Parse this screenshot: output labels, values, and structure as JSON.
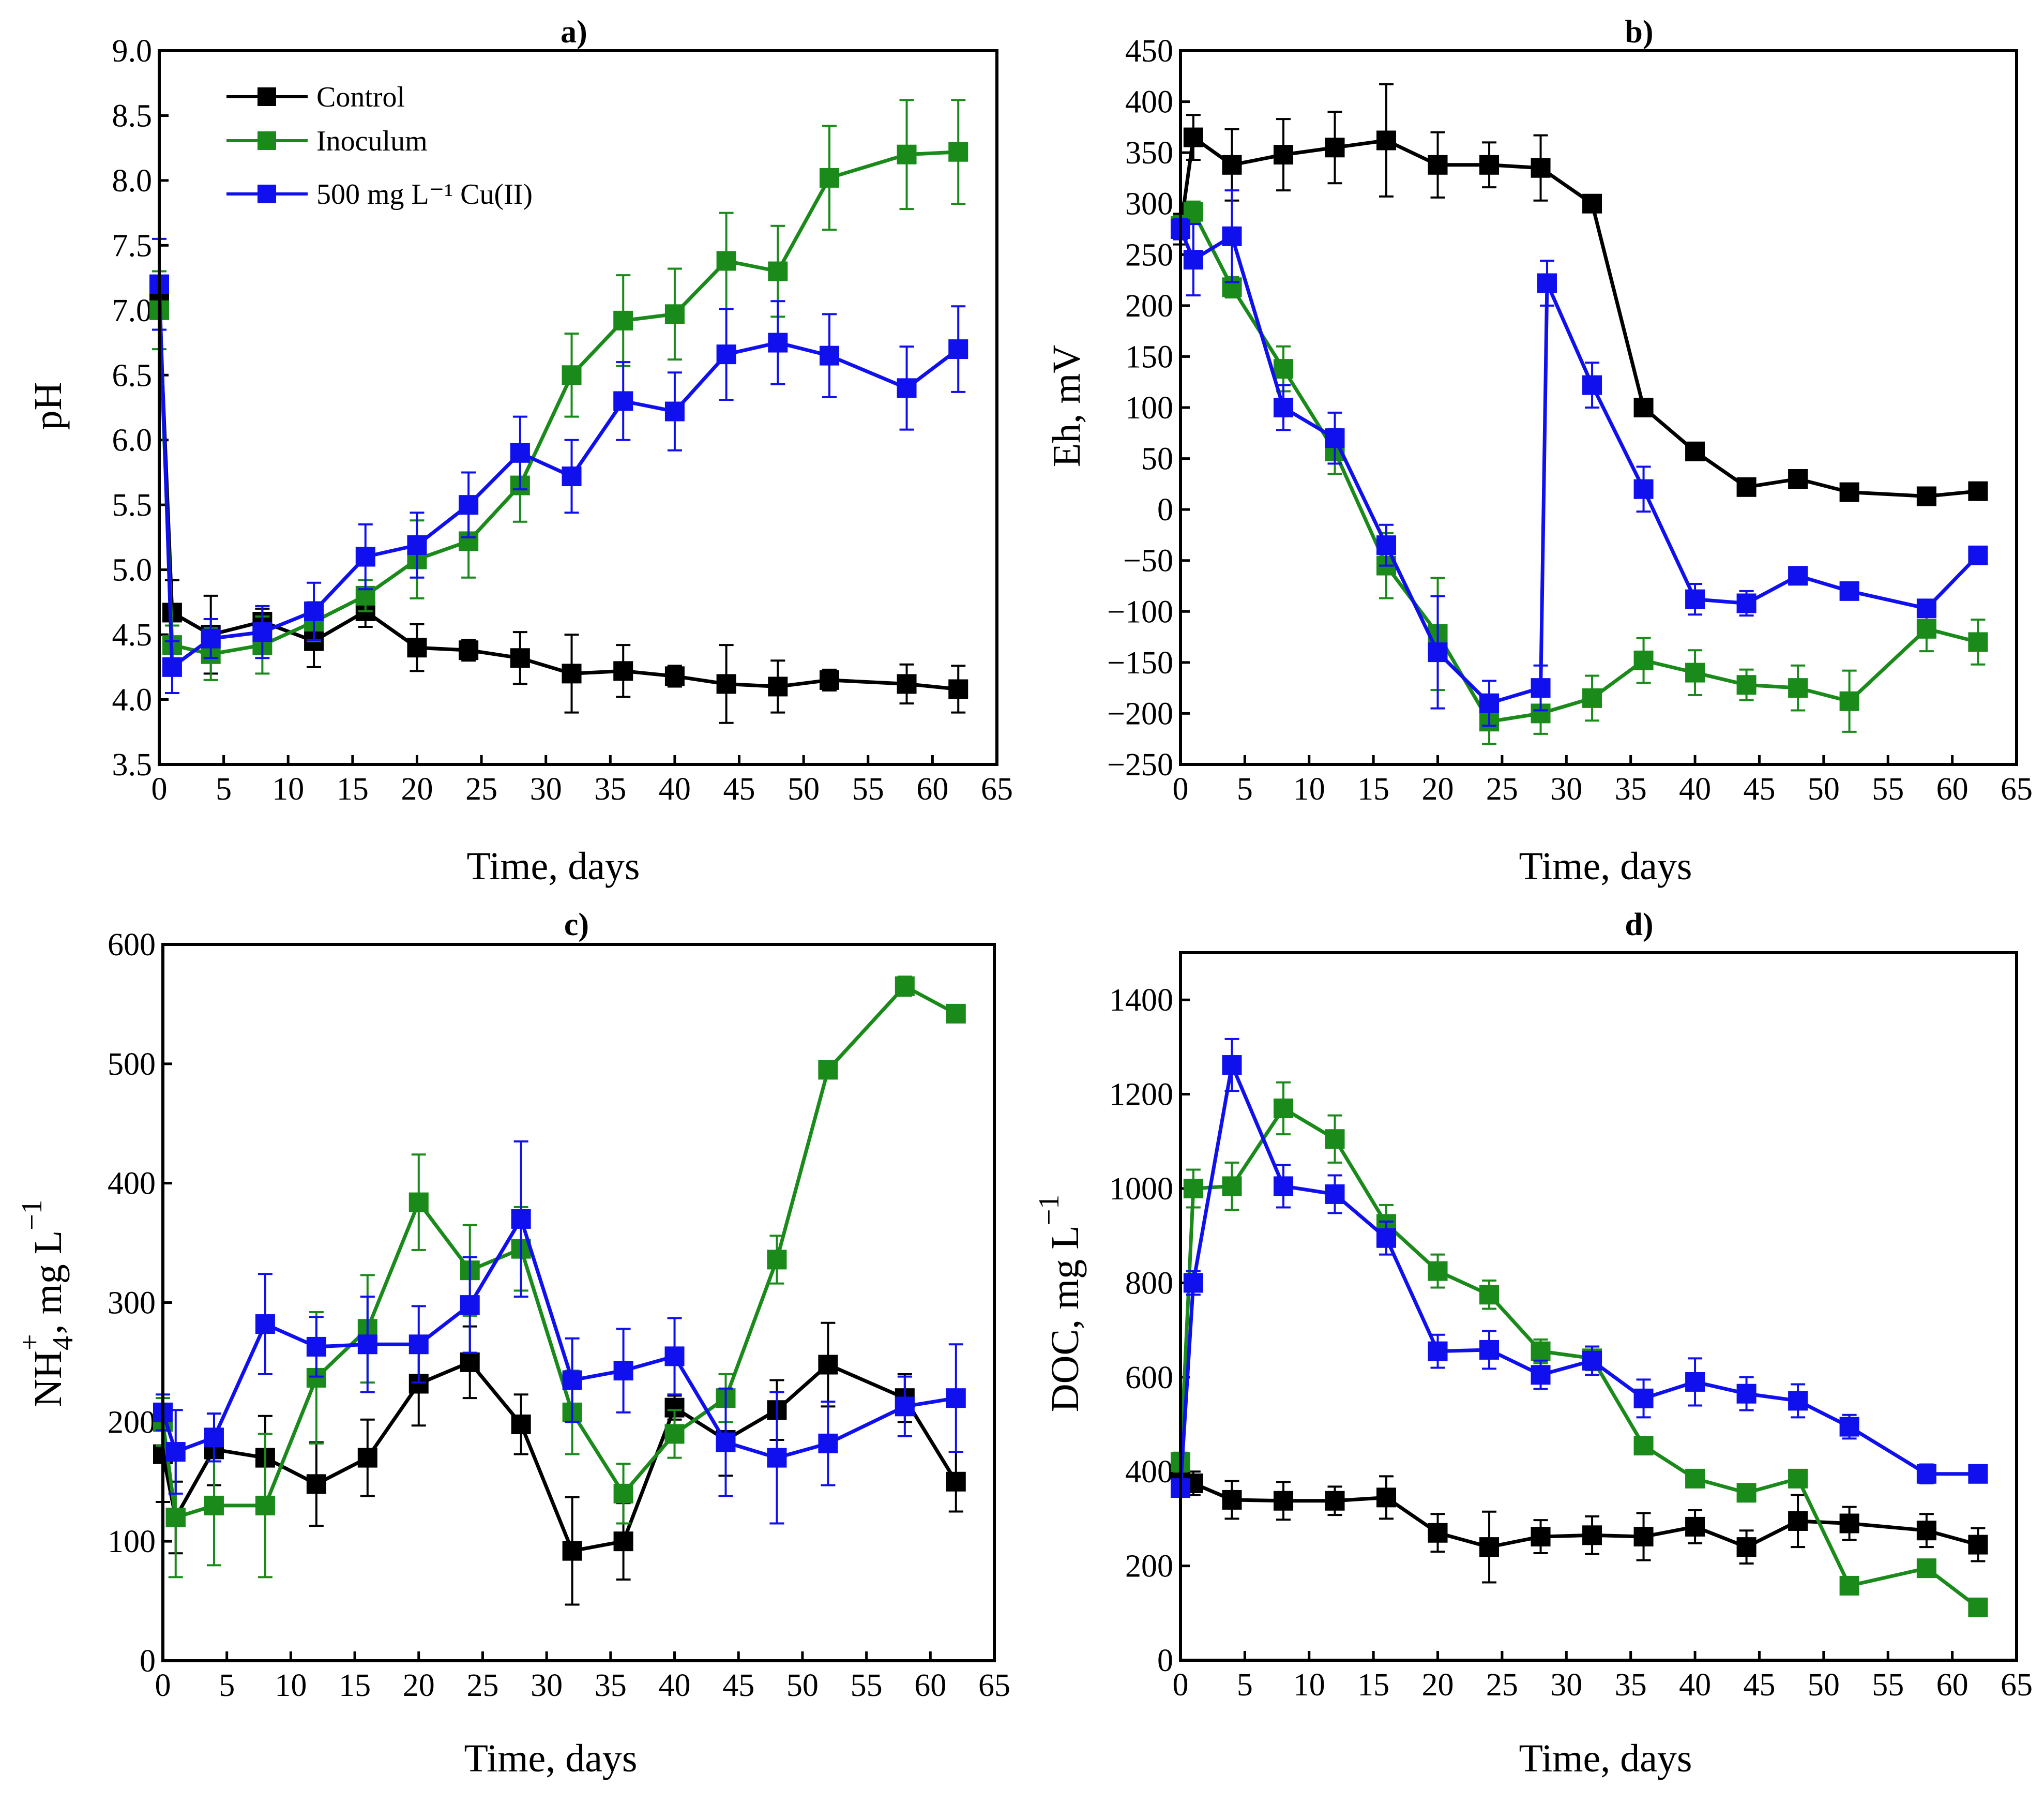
{
  "figure": {
    "legend": [
      {
        "label": "Control",
        "color": "#000000"
      },
      {
        "label": "Inoculum",
        "color": "#1a8a1a"
      },
      {
        "label": "500 mg L⁻¹ Cu(II)",
        "color": "#1010ee"
      }
    ]
  },
  "chart_data": [
    {
      "id": "a",
      "type": "line",
      "title": "a)",
      "xlabel": "Time, days",
      "ylabel": "pH",
      "xlim": [
        0,
        65
      ],
      "ylim": [
        3.5,
        9.0
      ],
      "xticks": [
        0,
        5,
        10,
        15,
        20,
        25,
        30,
        35,
        40,
        45,
        50,
        55,
        60,
        65
      ],
      "yticks": [
        3.5,
        4.0,
        4.5,
        5.0,
        5.5,
        6.0,
        6.5,
        7.0,
        7.5,
        8.0,
        8.5,
        9.0
      ],
      "ytick_labels": [
        "3.5",
        "4.0",
        "4.5",
        "5.0",
        "5.5",
        "6.0",
        "6.5",
        "7.0",
        "7.5",
        "8.0",
        "8.5",
        "9.0"
      ],
      "legend_position": "top-left",
      "series": [
        {
          "name": "Control",
          "color": "#000000",
          "x": [
            0,
            1,
            4,
            8,
            12,
            16,
            20,
            24,
            28,
            32,
            36,
            40,
            44,
            48,
            52,
            58,
            62
          ],
          "y": [
            7.05,
            4.67,
            4.5,
            4.6,
            4.45,
            4.68,
            4.4,
            4.38,
            4.32,
            4.2,
            4.22,
            4.18,
            4.12,
            4.1,
            4.15,
            4.12,
            4.08
          ],
          "err": [
            0.2,
            0.25,
            0.3,
            0.1,
            0.2,
            0.12,
            0.18,
            0.08,
            0.2,
            0.3,
            0.2,
            0.08,
            0.3,
            0.2,
            0.08,
            0.15,
            0.18
          ]
        },
        {
          "name": "Inoculum",
          "color": "#1a8a1a",
          "x": [
            0,
            1,
            4,
            8,
            12,
            16,
            20,
            24,
            28,
            32,
            36,
            40,
            44,
            48,
            52,
            58,
            62
          ],
          "y": [
            7.0,
            4.42,
            4.35,
            4.42,
            4.6,
            4.8,
            5.08,
            5.22,
            5.65,
            6.5,
            6.92,
            6.97,
            7.38,
            7.3,
            8.02,
            8.2,
            8.22
          ],
          "err": [
            0.3,
            0.15,
            0.2,
            0.22,
            0.15,
            0.12,
            0.3,
            0.28,
            0.28,
            0.32,
            0.35,
            0.35,
            0.37,
            0.35,
            0.4,
            0.42,
            0.4
          ]
        },
        {
          "name": "500 mg L⁻¹ Cu(II)",
          "color": "#1010ee",
          "x": [
            0,
            1,
            4,
            8,
            12,
            16,
            20,
            24,
            28,
            32,
            36,
            40,
            44,
            48,
            52,
            58,
            62
          ],
          "y": [
            7.2,
            4.25,
            4.47,
            4.52,
            4.68,
            5.1,
            5.19,
            5.5,
            5.9,
            5.72,
            6.3,
            6.22,
            6.66,
            6.75,
            6.65,
            6.4,
            6.7
          ],
          "err": [
            0.35,
            0.2,
            0.15,
            0.2,
            0.22,
            0.25,
            0.25,
            0.25,
            0.28,
            0.28,
            0.3,
            0.3,
            0.35,
            0.32,
            0.32,
            0.32,
            0.33
          ]
        }
      ]
    },
    {
      "id": "b",
      "type": "line",
      "title": "b)",
      "xlabel": "Time, days",
      "ylabel": "Eh, mV",
      "xlim": [
        0,
        65
      ],
      "ylim": [
        -250,
        450
      ],
      "xticks": [
        0,
        5,
        10,
        15,
        20,
        25,
        30,
        35,
        40,
        45,
        50,
        55,
        60,
        65
      ],
      "yticks": [
        -250,
        -200,
        -150,
        -100,
        -50,
        0,
        50,
        100,
        150,
        200,
        250,
        300,
        350,
        400,
        450
      ],
      "ytick_labels": [
        "−250",
        "−200",
        "−150",
        "−100",
        "−50",
        "0",
        "50",
        "100",
        "150",
        "200",
        "250",
        "300",
        "350",
        "400",
        "450"
      ],
      "series": [
        {
          "name": "Control",
          "color": "#000000",
          "x": [
            0,
            1,
            4,
            8,
            12,
            16,
            20,
            24,
            28,
            32,
            36,
            40,
            44,
            48,
            52,
            58,
            62
          ],
          "y": [
            275,
            365,
            338,
            348,
            355,
            362,
            338,
            338,
            335,
            300,
            100,
            57,
            22,
            30,
            17,
            13,
            18
          ],
          "err": [
            15,
            22,
            35,
            35,
            35,
            55,
            32,
            22,
            32,
            5,
            5,
            5,
            5,
            5,
            5,
            5,
            5
          ]
        },
        {
          "name": "Inoculum",
          "color": "#1a8a1a",
          "x": [
            0,
            1,
            4,
            8,
            12,
            16,
            20,
            24,
            28,
            32,
            36,
            40,
            44,
            48,
            52,
            58,
            62
          ],
          "y": [
            278,
            292,
            218,
            138,
            57,
            -55,
            -122,
            -208,
            -200,
            -185,
            -148,
            -160,
            -172,
            -175,
            -188,
            -117,
            -130
          ],
          "err": [
            10,
            10,
            10,
            22,
            22,
            32,
            55,
            22,
            20,
            22,
            22,
            22,
            15,
            22,
            30,
            22,
            22
          ]
        },
        {
          "name": "500 mg L⁻¹ Cu(II)",
          "color": "#1010ee",
          "x": [
            0,
            1,
            4,
            8,
            12,
            16,
            20,
            24,
            28,
            28.5,
            32,
            36,
            40,
            44,
            48,
            52,
            58,
            62
          ],
          "y": [
            275,
            245,
            268,
            100,
            70,
            -35,
            -140,
            -190,
            -175,
            222,
            122,
            20,
            -88,
            -92,
            -65,
            -80,
            -97,
            -45
          ],
          "err": [
            10,
            35,
            45,
            22,
            25,
            20,
            55,
            22,
            22,
            22,
            22,
            22,
            15,
            12,
            5,
            5,
            5,
            5
          ]
        }
      ]
    },
    {
      "id": "c",
      "type": "line",
      "title": "c)",
      "xlabel": "Time, days",
      "ylabel": "NH4+, mg L−1",
      "ylabel_parts": {
        "base": "NH",
        "sub": "4",
        "sup": "+",
        "unit": ", mg L",
        "unit_sup": "−1"
      },
      "xlim": [
        0,
        65
      ],
      "ylim": [
        0,
        600
      ],
      "xticks": [
        0,
        5,
        10,
        15,
        20,
        25,
        30,
        35,
        40,
        45,
        50,
        55,
        60,
        65
      ],
      "yticks": [
        0,
        100,
        200,
        300,
        400,
        500,
        600
      ],
      "ytick_labels": [
        "0",
        "100",
        "200",
        "300",
        "400",
        "500",
        "600"
      ],
      "series": [
        {
          "name": "Control",
          "color": "#000000",
          "x": [
            0,
            1,
            4,
            8,
            12,
            16,
            20,
            24,
            28,
            32,
            36,
            40,
            44,
            48,
            52,
            58,
            62
          ],
          "y": [
            173,
            120,
            177,
            170,
            148,
            170,
            232,
            250,
            198,
            92,
            100,
            212,
            185,
            210,
            248,
            220,
            150
          ],
          "err": [
            40,
            30,
            30,
            35,
            35,
            32,
            35,
            30,
            25,
            45,
            32,
            10,
            30,
            25,
            35,
            20,
            25
          ]
        },
        {
          "name": "Inoculum",
          "color": "#1a8a1a",
          "x": [
            0,
            1,
            4,
            8,
            12,
            16,
            20,
            24,
            28,
            32,
            36,
            40,
            44,
            48,
            52,
            58,
            62
          ],
          "y": [
            200,
            120,
            130,
            130,
            237,
            278,
            384,
            327,
            345,
            208,
            140,
            190,
            220,
            336,
            495,
            565,
            542
          ],
          "err": [
            20,
            50,
            50,
            60,
            55,
            45,
            40,
            38,
            35,
            35,
            25,
            20,
            20,
            20,
            5,
            8,
            5
          ]
        },
        {
          "name": "500 mg L⁻¹ Cu(II)",
          "color": "#1010ee",
          "x": [
            0,
            1,
            4,
            8,
            12,
            16,
            20,
            24,
            28,
            32,
            36,
            40,
            44,
            48,
            52,
            58,
            62
          ],
          "y": [
            208,
            175,
            187,
            282,
            263,
            265,
            265,
            298,
            370,
            235,
            243,
            255,
            183,
            170,
            182,
            213,
            220
          ],
          "err": [
            15,
            35,
            20,
            42,
            25,
            40,
            32,
            40,
            65,
            35,
            35,
            32,
            45,
            55,
            35,
            25,
            45
          ]
        }
      ]
    },
    {
      "id": "d",
      "type": "line",
      "title": "d)",
      "xlabel": "Time, days",
      "ylabel": "DOC, mg L−1",
      "ylabel_parts": {
        "base": "DOC",
        "unit": ", mg L",
        "unit_sup": "−1"
      },
      "xlim": [
        0,
        65
      ],
      "ylim": [
        0,
        1500
      ],
      "xticks": [
        0,
        5,
        10,
        15,
        20,
        25,
        30,
        35,
        40,
        45,
        50,
        55,
        60,
        65
      ],
      "yticks": [
        0,
        200,
        400,
        600,
        800,
        1000,
        1200,
        1400
      ],
      "ytick_labels": [
        "0",
        "200",
        "400",
        "600",
        "800",
        "1000",
        "1200",
        "1400"
      ],
      "series": [
        {
          "name": "Control",
          "color": "#000000",
          "x": [
            0,
            1,
            4,
            8,
            12,
            16,
            20,
            24,
            28,
            32,
            36,
            40,
            44,
            48,
            52,
            58,
            62
          ],
          "y": [
            395,
            375,
            340,
            338,
            338,
            345,
            270,
            240,
            262,
            265,
            262,
            283,
            240,
            295,
            290,
            275,
            245
          ],
          "err": [
            20,
            25,
            40,
            40,
            30,
            45,
            40,
            75,
            35,
            40,
            50,
            35,
            35,
            55,
            35,
            35,
            35
          ]
        },
        {
          "name": "Inoculum",
          "color": "#1a8a1a",
          "x": [
            0,
            1,
            4,
            8,
            12,
            16,
            20,
            24,
            28,
            32,
            36,
            40,
            44,
            48,
            52,
            58,
            62
          ],
          "y": [
            420,
            1000,
            1005,
            1170,
            1105,
            925,
            825,
            775,
            655,
            640,
            455,
            385,
            355,
            385,
            158,
            195,
            112
          ],
          "err": [
            20,
            40,
            50,
            55,
            50,
            40,
            35,
            30,
            25,
            25,
            10,
            10,
            10,
            10,
            5,
            5,
            5
          ]
        },
        {
          "name": "500 mg L⁻¹ Cu(II)",
          "color": "#1010ee",
          "x": [
            0,
            1,
            4,
            8,
            12,
            16,
            20,
            24,
            28,
            32,
            36,
            40,
            44,
            48,
            52,
            58,
            62
          ],
          "y": [
            365,
            800,
            1262,
            1005,
            988,
            895,
            655,
            658,
            605,
            635,
            555,
            590,
            565,
            550,
            495,
            395,
            395
          ],
          "err": [
            15,
            25,
            55,
            45,
            40,
            35,
            35,
            40,
            30,
            30,
            40,
            50,
            35,
            35,
            25,
            20,
            10
          ]
        }
      ]
    }
  ]
}
